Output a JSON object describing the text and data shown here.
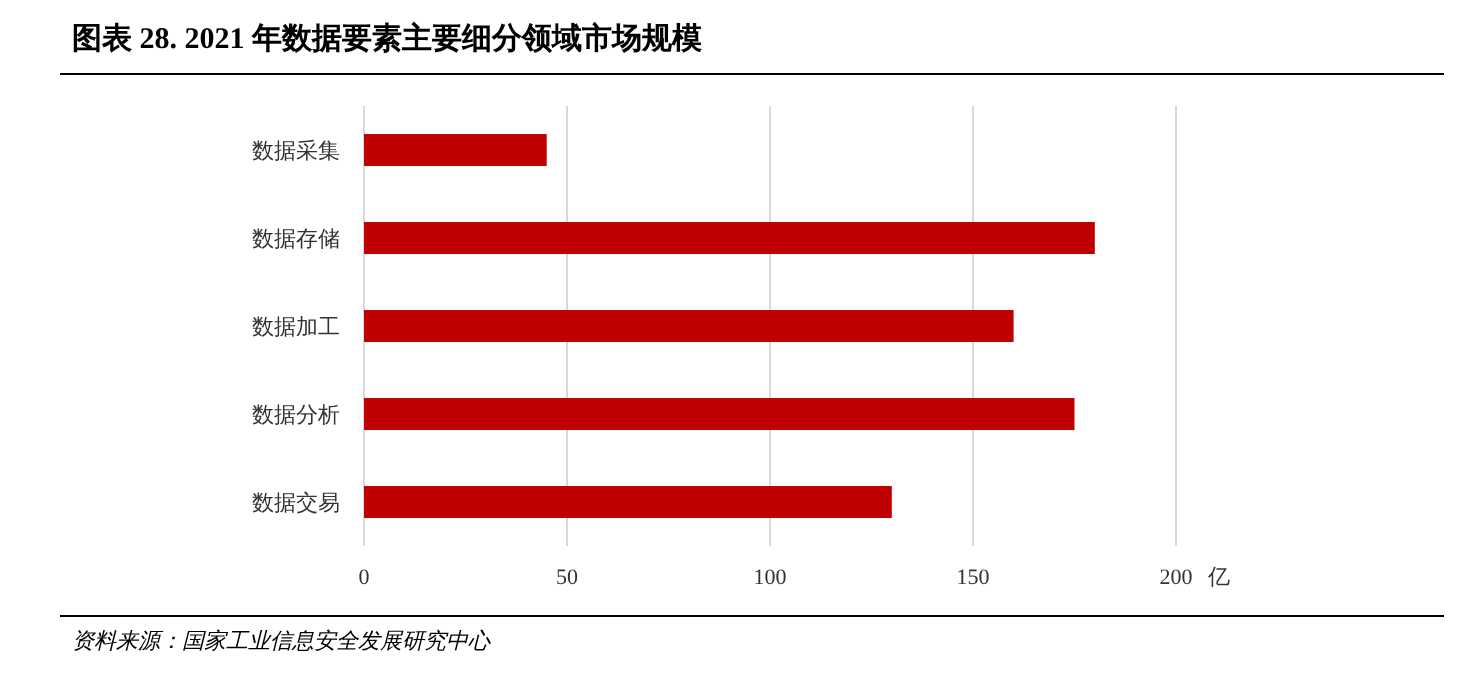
{
  "chart_data": {
    "type": "bar",
    "orientation": "horizontal",
    "title": "图表 28. 2021 年数据要素主要细分领域市场规模",
    "categories": [
      "数据采集",
      "数据存储",
      "数据加工",
      "数据分析",
      "数据交易"
    ],
    "values": [
      45,
      180,
      160,
      175,
      130
    ],
    "color": "#c00000",
    "xlim": [
      0,
      200
    ],
    "xticks": [
      0,
      50,
      100,
      150,
      200
    ],
    "xlabel": "亿",
    "grid": "x",
    "annotations": [
      "资料来源：国家工业信息安全发展研究中心"
    ]
  }
}
